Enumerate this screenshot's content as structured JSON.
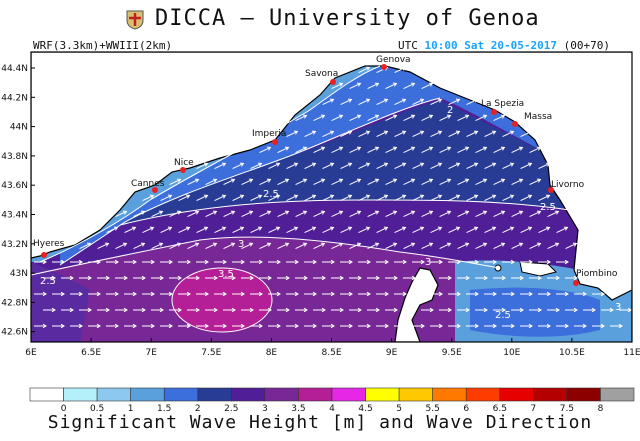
{
  "header": {
    "title": "DICCA — University of Genoa",
    "model": "WRF(3.3km)+WWIII(2km)",
    "utc_label": "UTC",
    "time": "10:00",
    "date": "Sat 20-05-2017",
    "run": "(00+70)"
  },
  "axes": {
    "y_ticks": [
      "44.4N",
      "44.2N",
      "44N",
      "43.8N",
      "43.6N",
      "43.4N",
      "43.2N",
      "43N",
      "42.8N",
      "42.6N"
    ],
    "x_ticks": [
      "6E",
      "6.5E",
      "7E",
      "7.5E",
      "8E",
      "8.5E",
      "9E",
      "9.5E",
      "10E",
      "10.5E",
      "11E"
    ]
  },
  "cities": [
    "Genova",
    "Savona",
    "La Spezia",
    "Massa",
    "Imperia",
    "Nice",
    "Cannes",
    "Livorno",
    "Hyeres",
    "Piombino"
  ],
  "contour_labels": [
    "2.5",
    "3",
    "3",
    "3.5",
    "3",
    "3",
    "2.5",
    "2.5",
    "2.5",
    "2"
  ],
  "colorbar": {
    "ticks": [
      "0",
      "0.5",
      "1",
      "1.5",
      "2",
      "2.5",
      "3",
      "3.5",
      "4",
      "4.5",
      "5",
      "5.5",
      "6",
      "6.5",
      "7",
      "7.5",
      "8"
    ],
    "colors": [
      "#ffffff",
      "#b4f0fa",
      "#8cc8f0",
      "#5aa0dc",
      "#3c6edc",
      "#283c96",
      "#501e96",
      "#782896",
      "#b41e96",
      "#e628e6",
      "#ffff00",
      "#ffc800",
      "#ff7800",
      "#ff3c00",
      "#e60000",
      "#b40000",
      "#8c0000",
      "#a0a0a0"
    ],
    "title": "Significant Wave Height [m] and Wave Direction"
  },
  "colors": {
    "land": "#ffffff",
    "arrow": "#ffffff",
    "city": "#e82020",
    "time_accent": "#1aa3ff"
  }
}
